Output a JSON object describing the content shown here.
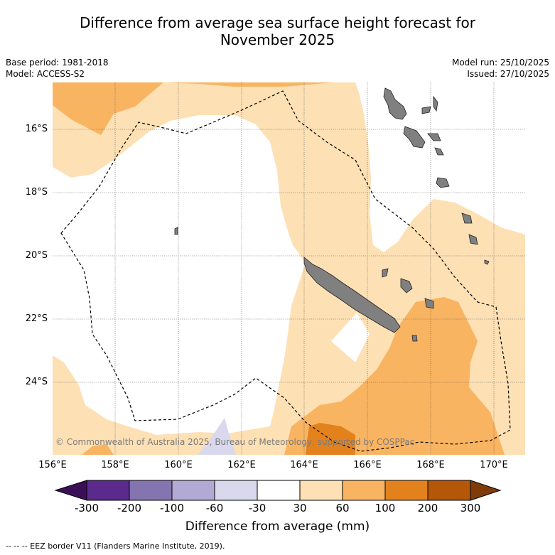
{
  "title_line1": "Difference from average sea surface height forecast for",
  "title_line2": "November 2025",
  "base_period": "Base period: 1981-2018",
  "model": "Model: ACCESS-S2",
  "model_run": "Model run: 25/10/2025",
  "issued": "Issued: 27/10/2025",
  "lat_labels": [
    "16°S",
    "18°S",
    "20°S",
    "22°S",
    "24°S"
  ],
  "lon_labels": [
    "156°E",
    "158°E",
    "160°E",
    "162°E",
    "164°E",
    "166°E",
    "168°E",
    "170°E"
  ],
  "copyright": "© Commonwealth of Australia 2025, Bureau of Meteorology, supported by COSPPac",
  "colorbar": {
    "labels": [
      "-300",
      "-200",
      "-100",
      "-60",
      "-30",
      "30",
      "60",
      "100",
      "200",
      "300"
    ],
    "colors": [
      "#3b0f57",
      "#5a2a8c",
      "#8474b0",
      "#b2a9d4",
      "#d9d8ec",
      "#ffffff",
      "#fde0b4",
      "#f9b462",
      "#e3821d",
      "#b45708",
      "#7f3b09"
    ],
    "title": "Difference from average (mm)"
  },
  "fill_colors": {
    "light": "#fde0b4",
    "medium": "#f9b462",
    "dark": "#e3821d",
    "neg": "#d9d8ec",
    "land": "#808080"
  },
  "eez_note": "--  --  -- EEZ border V11 (Flanders Marine Institute, 2019)."
}
